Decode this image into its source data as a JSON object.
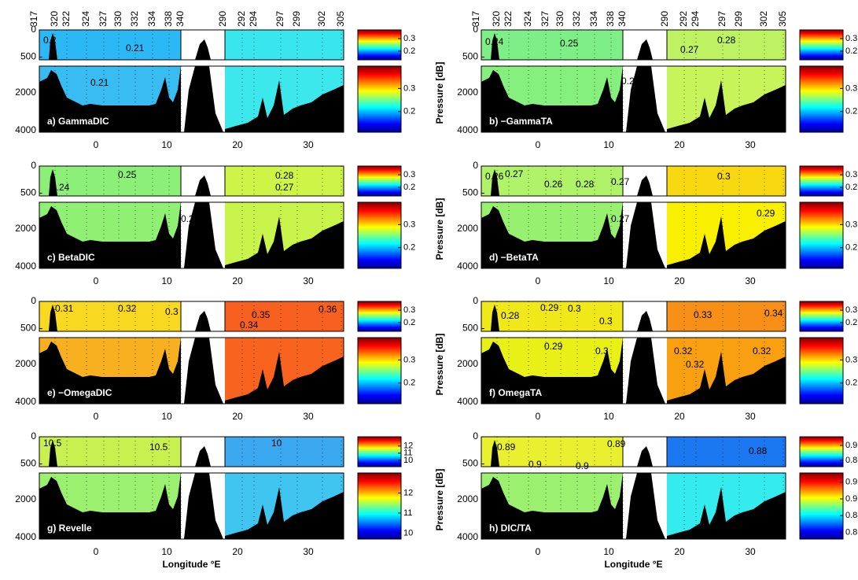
{
  "stations": [
    "317",
    "320",
    "322",
    "324",
    "327",
    "330",
    "332",
    "334",
    "338",
    "340",
    "290",
    "292",
    "294",
    "297",
    "299",
    "302",
    "305"
  ],
  "x_axis": {
    "title": "Longitude °E",
    "lim": [
      -8,
      35
    ],
    "ticks": [
      0,
      10,
      20,
      30
    ]
  },
  "pressure": {
    "title": "Pressure [dB]",
    "upper_lim": [
      0,
      550
    ],
    "upper_ticks": [
      0,
      500
    ],
    "lower_lim": [
      600,
      4100
    ],
    "lower_ticks": [
      2000,
      4000
    ]
  },
  "panels": [
    {
      "label": "a) GammaDIC",
      "colors": {
        "west_upper": "#2cb8f4",
        "east_upper": "#3ae6ee",
        "west_lower": "#38bcf2",
        "east_lower": "#3ce8ec"
      },
      "colorbar": {
        "upper_lim": [
          0.13,
          0.37
        ],
        "upper_ticks": [
          0.2,
          0.3
        ],
        "lower_lim": [
          0.11,
          0.397
        ],
        "lower_ticks": [
          0.2,
          0.3
        ]
      },
      "contour_labels": [
        "0.2",
        "0.21",
        "0.21"
      ]
    },
    {
      "label": "b) −GammaTA",
      "colors": {
        "west_upper": "#7eee86",
        "east_upper": "#bef262",
        "west_lower": "#86f07e",
        "east_lower": "#c6f45a"
      },
      "colorbar": {
        "upper_lim": [
          0.13,
          0.37
        ],
        "upper_ticks": [
          0.2,
          0.3
        ],
        "lower_lim": [
          0.11,
          0.397
        ],
        "lower_ticks": [
          0.2,
          0.3
        ]
      },
      "contour_labels": [
        "0.24",
        "0.25",
        "0.28",
        "0.27",
        "0.25"
      ]
    },
    {
      "label": "c) BetaDIC",
      "colors": {
        "west_upper": "#8cf078",
        "east_upper": "#cef448",
        "west_lower": "#90f074",
        "east_lower": "#c8f44c"
      },
      "colorbar": {
        "upper_lim": [
          0.13,
          0.37
        ],
        "upper_ticks": [
          0.2,
          0.3
        ],
        "lower_lim": [
          0.11,
          0.397
        ],
        "lower_ticks": [
          0.2,
          0.3
        ]
      },
      "contour_labels": [
        "0.25",
        "0.24",
        "0.28",
        "0.27",
        "0.25"
      ]
    },
    {
      "label": "d) −BetaTA",
      "colors": {
        "west_upper": "#b0f268",
        "east_upper": "#f8d810",
        "west_lower": "#98f070",
        "east_lower": "#f8f000"
      },
      "colorbar": {
        "upper_lim": [
          0.13,
          0.37
        ],
        "upper_ticks": [
          0.2,
          0.3
        ],
        "lower_lim": [
          0.11,
          0.397
        ],
        "lower_ticks": [
          0.2,
          0.3
        ]
      },
      "contour_labels": [
        "0.26",
        "0.27",
        "0.26",
        "0.28",
        "0.27",
        "0.3",
        "0.29",
        "0.27"
      ]
    },
    {
      "label": "e) −OmegaDIC",
      "colors": {
        "west_upper": "#f8d820",
        "east_upper": "#f86020",
        "west_lower": "#f8b020",
        "east_lower": "#f86420"
      },
      "colorbar": {
        "upper_lim": [
          0.13,
          0.37
        ],
        "upper_ticks": [
          0.2,
          0.3
        ],
        "lower_lim": [
          0.11,
          0.397
        ],
        "lower_ticks": [
          0.2,
          0.3
        ]
      },
      "contour_labels": [
        "0.31",
        "0.32",
        "0.3",
        "0.35",
        "0.34",
        "0.36"
      ]
    },
    {
      "label": "f) OmegaTA",
      "colors": {
        "west_upper": "#f0e818",
        "east_upper": "#f89018",
        "west_lower": "#e8f018",
        "east_lower": "#f8a010"
      },
      "colorbar": {
        "upper_lim": [
          0.13,
          0.37
        ],
        "upper_ticks": [
          0.2,
          0.3
        ],
        "lower_lim": [
          0.11,
          0.397
        ],
        "lower_ticks": [
          0.2,
          0.3
        ]
      },
      "contour_labels": [
        "0.28",
        "0.29",
        "0.3",
        "0.3",
        "0.33",
        "0.34",
        "0.29",
        "0.3",
        "0.32",
        "0.32",
        "0.32"
      ]
    },
    {
      "label": "g) Revelle",
      "colors": {
        "west_upper": "#c8f050",
        "east_upper": "#3ca8f0",
        "west_lower": "#9cf070",
        "east_lower": "#40c4f0"
      },
      "colorbar": {
        "upper_lim": [
          9.1,
          13.3
        ],
        "upper_ticks": [
          10,
          11,
          12
        ],
        "lower_lim": [
          9.7,
          13
        ],
        "lower_ticks": [
          10,
          11,
          12
        ]
      },
      "contour_labels": [
        "10.5",
        "10.5",
        "10"
      ]
    },
    {
      "label": "h) DIC/TA",
      "colors": {
        "west_upper": "#e8f030",
        "east_upper": "#1c78f0",
        "west_lower": "#9cf070",
        "east_lower": "#34ecee"
      },
      "colorbar": {
        "upper_lim": [
          0.843,
          0.923
        ],
        "upper_ticks": [
          0.86,
          0.9
        ],
        "lower_lim": [
          0.852,
          0.931
        ],
        "lower_ticks": [
          0.86,
          0.88,
          0.9,
          0.92
        ]
      },
      "contour_labels": [
        "0.89",
        "0.89",
        "0.9",
        "0.9",
        "0.88"
      ]
    }
  ]
}
